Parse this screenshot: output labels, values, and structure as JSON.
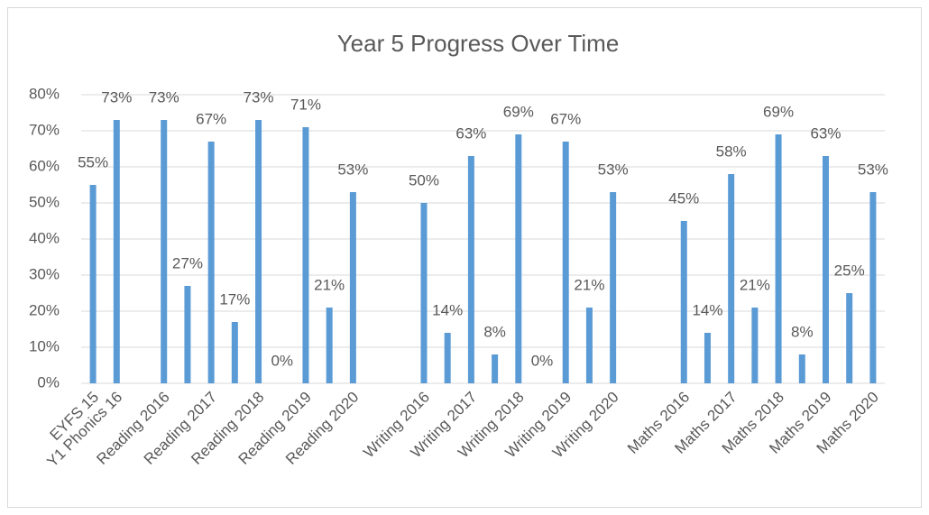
{
  "chart_data": {
    "type": "bar",
    "title": "Year 5 Progress Over Time",
    "categories": [
      "EYFS 15",
      "Y1 Phonics 16",
      null,
      "Reading 2016",
      null,
      "Reading 2017",
      null,
      "Reading 2018",
      null,
      "Reading 2019",
      null,
      "Reading 2020",
      null,
      null,
      "Writing 2016",
      null,
      "Writing 2017",
      null,
      "Writing 2018",
      null,
      "Writing 2019",
      null,
      "Writing 2020",
      null,
      null,
      "Maths 2016",
      null,
      "Maths 2017",
      null,
      "Maths 2018",
      null,
      "Maths 2019",
      null,
      "Maths 2020"
    ],
    "values": [
      55,
      73,
      null,
      73,
      27,
      67,
      17,
      73,
      0,
      71,
      21,
      53,
      null,
      null,
      50,
      14,
      63,
      8,
      69,
      0,
      67,
      21,
      53,
      null,
      null,
      45,
      14,
      58,
      21,
      69,
      8,
      63,
      25,
      53
    ],
    "value_labels": [
      "55%",
      "73%",
      null,
      "73%",
      "27%",
      "67%",
      "17%",
      "73%",
      "0%",
      "71%",
      "21%",
      "53%",
      null,
      null,
      "50%",
      "14%",
      "63%",
      "8%",
      "69%",
      "0%",
      "67%",
      "21%",
      "53%",
      null,
      null,
      "45%",
      "14%",
      "58%",
      "21%",
      "69%",
      "8%",
      "63%",
      "25%",
      "53%"
    ],
    "color": "#5b9bd5",
    "ylim": [
      0,
      80
    ],
    "yticks": [
      {
        "value": 0,
        "label": "0%"
      },
      {
        "value": 10,
        "label": "10%"
      },
      {
        "value": 20,
        "label": "20%"
      },
      {
        "value": 30,
        "label": "30%"
      },
      {
        "value": 40,
        "label": "40%"
      },
      {
        "value": 50,
        "label": "50%"
      },
      {
        "value": 60,
        "label": "60%"
      },
      {
        "value": 70,
        "label": "70%"
      },
      {
        "value": 80,
        "label": "80%"
      }
    ],
    "grid": true
  }
}
